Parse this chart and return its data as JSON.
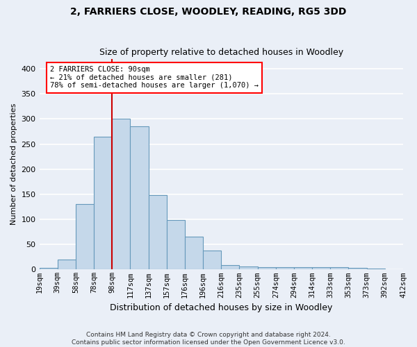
{
  "title": "2, FARRIERS CLOSE, WOODLEY, READING, RG5 3DD",
  "subtitle": "Size of property relative to detached houses in Woodley",
  "xlabel": "Distribution of detached houses by size in Woodley",
  "ylabel": "Number of detached properties",
  "bin_labels": [
    "19sqm",
    "39sqm",
    "58sqm",
    "78sqm",
    "98sqm",
    "117sqm",
    "137sqm",
    "157sqm",
    "176sqm",
    "196sqm",
    "216sqm",
    "235sqm",
    "255sqm",
    "274sqm",
    "294sqm",
    "314sqm",
    "333sqm",
    "353sqm",
    "373sqm",
    "392sqm",
    "412sqm"
  ],
  "bar_heights": [
    3,
    20,
    130,
    265,
    300,
    285,
    148,
    98,
    65,
    38,
    9,
    6,
    5,
    4,
    5,
    5,
    4,
    3,
    2,
    1
  ],
  "bar_color": "#c5d8ea",
  "bar_edge_color": "#6699bb",
  "vline_color": "#cc0000",
  "vline_x_index": 4.0,
  "annotation_text": "2 FARRIERS CLOSE: 90sqm\n← 21% of detached houses are smaller (281)\n78% of semi-detached houses are larger (1,070) →",
  "annotation_box_facecolor": "white",
  "annotation_box_edgecolor": "red",
  "ylim": [
    0,
    420
  ],
  "yticks": [
    0,
    50,
    100,
    150,
    200,
    250,
    300,
    350,
    400
  ],
  "footer_text": "Contains HM Land Registry data © Crown copyright and database right 2024.\nContains public sector information licensed under the Open Government Licence v3.0.",
  "background_color": "#eaeff7",
  "axes_background_color": "#eaeff7",
  "grid_color": "#ffffff",
  "title_fontsize": 10,
  "subtitle_fontsize": 9,
  "ylabel_fontsize": 8,
  "xlabel_fontsize": 9,
  "tick_fontsize": 7.5,
  "footer_fontsize": 6.5
}
